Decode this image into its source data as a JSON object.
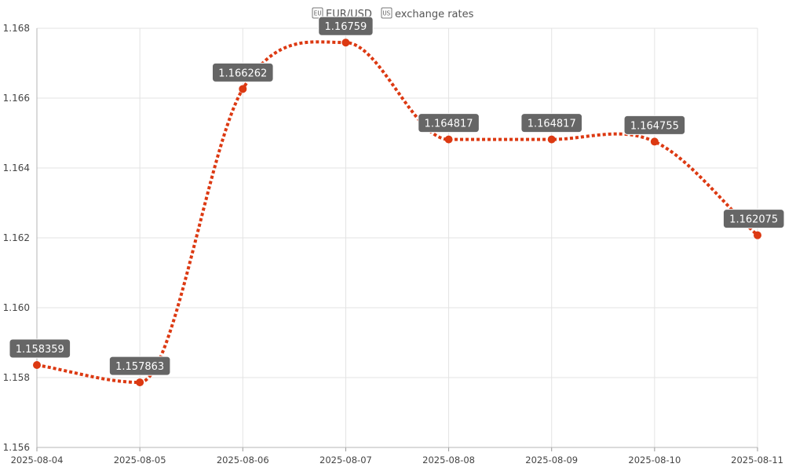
{
  "chart_data": {
    "type": "line",
    "title_pre": "EUR/USD",
    "title_post": "exchange rates",
    "title_flags": [
      "EU",
      "US"
    ],
    "x": [
      "2025-08-04",
      "2025-08-05",
      "2025-08-06",
      "2025-08-07",
      "2025-08-08",
      "2025-08-09",
      "2025-08-10",
      "2025-08-11"
    ],
    "series": [
      {
        "values": [
          1.158359,
          1.157863,
          1.166262,
          1.16759,
          1.164817,
          1.164817,
          1.164755,
          1.162075
        ],
        "labels": [
          "1.158359",
          "1.157863",
          "1.166262",
          "1.16759",
          "1.164817",
          "1.164817",
          "1.164755",
          "1.162075"
        ],
        "color": "#dc3912",
        "line_style": "dotted"
      }
    ],
    "yticks": [
      "1.156",
      "1.158",
      "1.160",
      "1.162",
      "1.164",
      "1.166",
      "1.168"
    ],
    "ylim": [
      1.156,
      1.168
    ],
    "grid": true,
    "legend": "none"
  }
}
